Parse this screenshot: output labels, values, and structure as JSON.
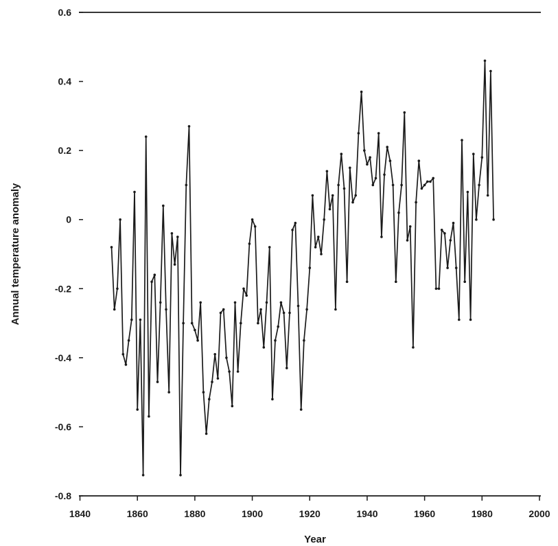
{
  "chart_data": {
    "type": "line",
    "title": "",
    "xlabel": "Year",
    "ylabel": "Annual temperature anomaly",
    "xlim": [
      1840,
      2000
    ],
    "ylim": [
      -0.8,
      0.6
    ],
    "xticks": [
      1840,
      1860,
      1880,
      1900,
      1920,
      1940,
      1960,
      1980,
      2000
    ],
    "yticks": [
      -0.8,
      -0.6,
      -0.4,
      -0.2,
      0,
      0.2,
      0.4,
      0.6
    ],
    "xtick_labels": [
      "1840",
      "1860",
      "1880",
      "1900",
      "1920",
      "1940",
      "1960",
      "1980",
      "2000"
    ],
    "ytick_labels": [
      "-0.8",
      "-0.6",
      "-0.4",
      "-0.2",
      "0",
      "0.2",
      "0.4",
      "0.6"
    ],
    "grid": false,
    "legend": "none",
    "line_color": "#1a1a1a",
    "series": [
      {
        "x": [
          1851,
          1852,
          1853,
          1854,
          1855,
          1856,
          1857,
          1858,
          1859,
          1860,
          1861,
          1862,
          1863,
          1864,
          1865,
          1866,
          1867,
          1868,
          1869,
          1870,
          1871,
          1872,
          1873,
          1874,
          1875,
          1876,
          1877,
          1878,
          1879,
          1880,
          1881,
          1882,
          1883,
          1884,
          1885,
          1886,
          1887,
          1888,
          1889,
          1890,
          1891,
          1892,
          1893,
          1894,
          1895,
          1896,
          1897,
          1898,
          1899,
          1900,
          1901,
          1902,
          1903,
          1904,
          1905,
          1906,
          1907,
          1908,
          1909,
          1910,
          1911,
          1912,
          1913,
          1914,
          1915,
          1916,
          1917,
          1918,
          1919,
          1920,
          1921,
          1922,
          1923,
          1924,
          1925,
          1926,
          1927,
          1928,
          1929,
          1930,
          1931,
          1932,
          1933,
          1934,
          1935,
          1936,
          1937,
          1938,
          1939,
          1940,
          1941,
          1942,
          1943,
          1944,
          1945,
          1946,
          1947,
          1948,
          1949,
          1950,
          1951,
          1952,
          1953,
          1954,
          1955,
          1956,
          1957,
          1958,
          1959,
          1960,
          1961,
          1962,
          1963,
          1964,
          1965,
          1966,
          1967,
          1968,
          1969,
          1970,
          1971,
          1972,
          1973,
          1974,
          1975,
          1976,
          1977,
          1978,
          1979,
          1980,
          1981,
          1982,
          1983,
          1984
        ],
        "values": [
          -0.08,
          -0.26,
          -0.2,
          0.0,
          -0.39,
          -0.42,
          -0.35,
          -0.29,
          0.08,
          -0.55,
          -0.29,
          -0.74,
          0.24,
          -0.57,
          -0.18,
          -0.16,
          -0.47,
          -0.24,
          0.04,
          -0.26,
          -0.5,
          -0.04,
          -0.13,
          -0.05,
          -0.74,
          -0.3,
          0.1,
          0.27,
          -0.3,
          -0.32,
          -0.35,
          -0.24,
          -0.5,
          -0.62,
          -0.52,
          -0.47,
          -0.39,
          -0.46,
          -0.27,
          -0.26,
          -0.4,
          -0.44,
          -0.54,
          -0.24,
          -0.44,
          -0.3,
          -0.2,
          -0.22,
          -0.07,
          0.0,
          -0.02,
          -0.3,
          -0.26,
          -0.37,
          -0.24,
          -0.08,
          -0.52,
          -0.35,
          -0.31,
          -0.24,
          -0.27,
          -0.43,
          -0.27,
          -0.03,
          -0.01,
          -0.25,
          -0.55,
          -0.35,
          -0.26,
          -0.14,
          0.07,
          -0.08,
          -0.05,
          -0.1,
          0.0,
          0.14,
          0.03,
          0.07,
          -0.26,
          0.1,
          0.19,
          0.09,
          -0.18,
          0.15,
          0.05,
          0.07,
          0.25,
          0.37,
          0.2,
          0.16,
          0.18,
          0.1,
          0.12,
          0.25,
          -0.05,
          0.13,
          0.21,
          0.17,
          0.1,
          -0.18,
          0.02,
          0.1,
          0.31,
          -0.06,
          -0.02,
          -0.37,
          0.05,
          0.17,
          0.09,
          0.1,
          0.11,
          0.11,
          0.12,
          -0.2,
          -0.2,
          -0.03,
          -0.04,
          -0.14,
          -0.06,
          -0.01,
          -0.14,
          -0.29,
          0.23,
          -0.18,
          0.08,
          -0.29,
          0.19,
          0.0,
          0.1,
          0.18,
          0.46,
          0.07,
          0.43,
          0.0
        ]
      }
    ]
  }
}
